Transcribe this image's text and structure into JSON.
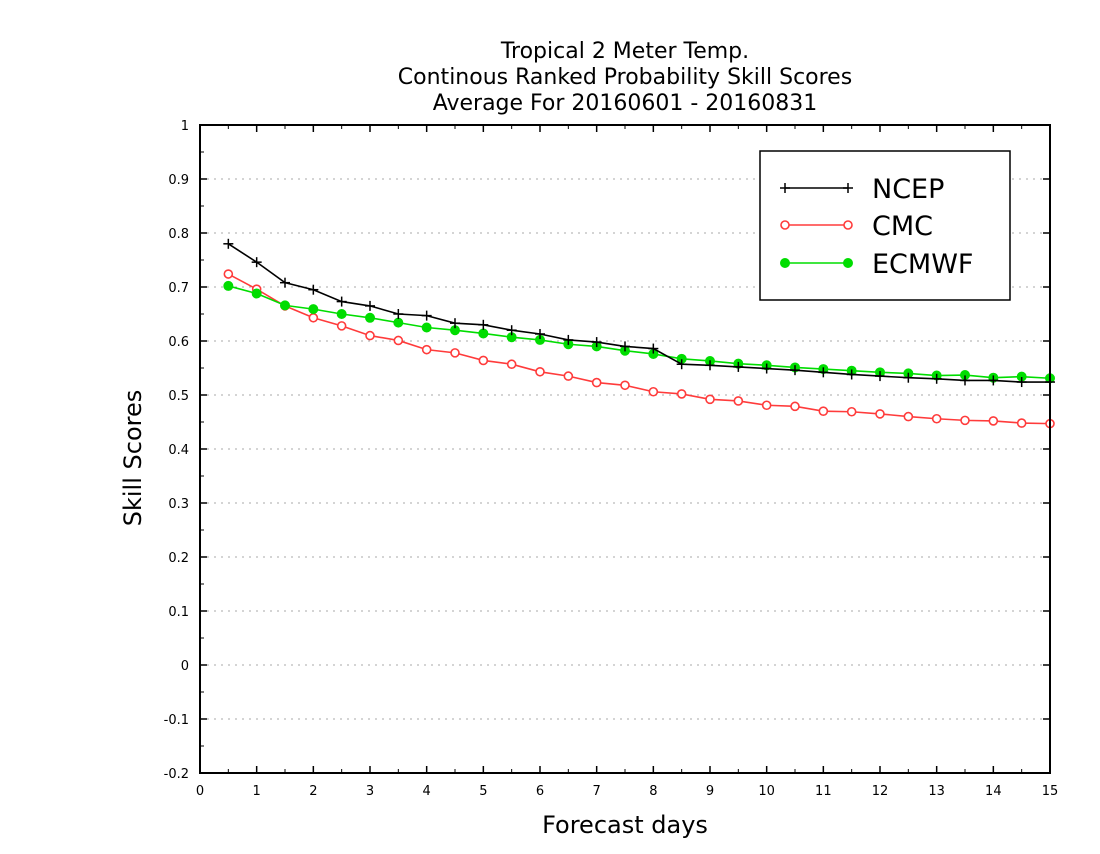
{
  "chart_data": {
    "type": "line",
    "title": [
      "Tropical 2 Meter Temp.",
      "Continous Ranked Probability Skill Scores",
      "Average For 20160601 - 20160831"
    ],
    "xlabel": "Forecast days",
    "ylabel": "Skill Scores",
    "xlim": [
      0,
      15
    ],
    "ylim": [
      -0.2,
      1
    ],
    "x_ticks": [
      0,
      1,
      2,
      3,
      4,
      5,
      6,
      7,
      8,
      9,
      10,
      11,
      12,
      13,
      14,
      15
    ],
    "x_tick_labels": [
      "0",
      "1",
      "2",
      "3",
      "4",
      "5",
      "6",
      "7",
      "8",
      "9",
      "10",
      "11",
      "12",
      "13",
      "14",
      "15"
    ],
    "y_ticks": [
      -0.2,
      -0.1,
      0,
      0.1,
      0.2,
      0.3,
      0.4,
      0.5,
      0.6,
      0.7,
      0.8,
      0.9,
      1
    ],
    "y_tick_labels": [
      "-0.2",
      "-0.1",
      "0",
      "0.1",
      "0.2",
      "0.3",
      "0.4",
      "0.5",
      "0.6",
      "0.7",
      "0.8",
      "0.9",
      "1"
    ],
    "grid": "horizontal dotted",
    "legend_position": "top-right",
    "x": [
      0.5,
      1,
      1.5,
      2,
      2.5,
      3,
      3.5,
      4,
      4.5,
      5,
      5.5,
      6,
      6.5,
      7,
      7.5,
      8,
      8.5,
      9,
      9.5,
      10,
      10.5,
      11,
      11.5,
      12,
      12.5,
      13,
      13.5,
      14,
      14.5,
      15
    ],
    "series": [
      {
        "name": "NCEP",
        "color": "#000000",
        "marker": "plus",
        "values": [
          0.78,
          0.746,
          0.708,
          0.695,
          0.673,
          0.665,
          0.65,
          0.647,
          0.633,
          0.63,
          0.62,
          0.613,
          0.602,
          0.598,
          0.59,
          0.586,
          0.557,
          0.555,
          0.552,
          0.549,
          0.546,
          0.542,
          0.538,
          0.535,
          0.532,
          0.53,
          0.527,
          0.527,
          0.524,
          0.524
        ]
      },
      {
        "name": "CMC",
        "color": "#ff3b3b",
        "marker": "open-circle",
        "values": [
          0.724,
          0.696,
          0.665,
          0.643,
          0.628,
          0.61,
          0.601,
          0.584,
          0.578,
          0.564,
          0.557,
          0.543,
          0.535,
          0.523,
          0.518,
          0.506,
          0.502,
          0.492,
          0.489,
          0.481,
          0.479,
          0.47,
          0.469,
          0.465,
          0.46,
          0.456,
          0.453,
          0.452,
          0.448,
          0.447
        ]
      },
      {
        "name": "ECMWF",
        "color": "#00dd00",
        "marker": "filled-circle",
        "values": [
          0.702,
          0.688,
          0.666,
          0.659,
          0.65,
          0.643,
          0.634,
          0.625,
          0.62,
          0.614,
          0.607,
          0.602,
          0.594,
          0.59,
          0.582,
          0.576,
          0.567,
          0.563,
          0.558,
          0.555,
          0.551,
          0.548,
          0.545,
          0.542,
          0.54,
          0.536,
          0.537,
          0.532,
          0.534,
          0.531
        ]
      }
    ]
  }
}
